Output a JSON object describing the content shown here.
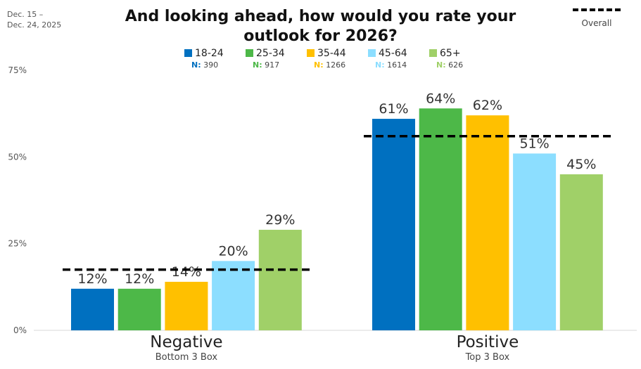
{
  "date_range": [
    "Dec. 15 –",
    "Dec. 24, 2025"
  ],
  "chart_data": {
    "type": "bar",
    "title_lines": [
      "And looking ahead, how would you rate your",
      "outlook for 2026?"
    ],
    "categories": [
      "Negative",
      "Positive"
    ],
    "category_subtitles": [
      "Bottom 3 Box",
      "Top 3 Box"
    ],
    "series": [
      {
        "name": "18-24",
        "n": "390",
        "color": "#0070C0",
        "values": [
          12,
          61
        ]
      },
      {
        "name": "25-34",
        "n": "917",
        "color": "#4DB848",
        "values": [
          12,
          64
        ]
      },
      {
        "name": "35-44",
        "n": "1266",
        "color": "#FFC000",
        "values": [
          14,
          62
        ]
      },
      {
        "name": "45-64",
        "n": "1614",
        "color": "#8CDEFF",
        "values": [
          20,
          51
        ]
      },
      {
        "name": "65+",
        "n": "626",
        "color": "#A0D068",
        "values": [
          29,
          45
        ]
      }
    ],
    "overall": [
      17.5,
      56
    ],
    "overall_label": "Overall",
    "n_prefix": "N:",
    "value_suffix": "%",
    "ylim": [
      0,
      75
    ],
    "yticks": [
      0,
      25,
      50,
      75
    ],
    "ytick_labels": [
      "0%",
      "25%",
      "50%",
      "75%"
    ]
  }
}
